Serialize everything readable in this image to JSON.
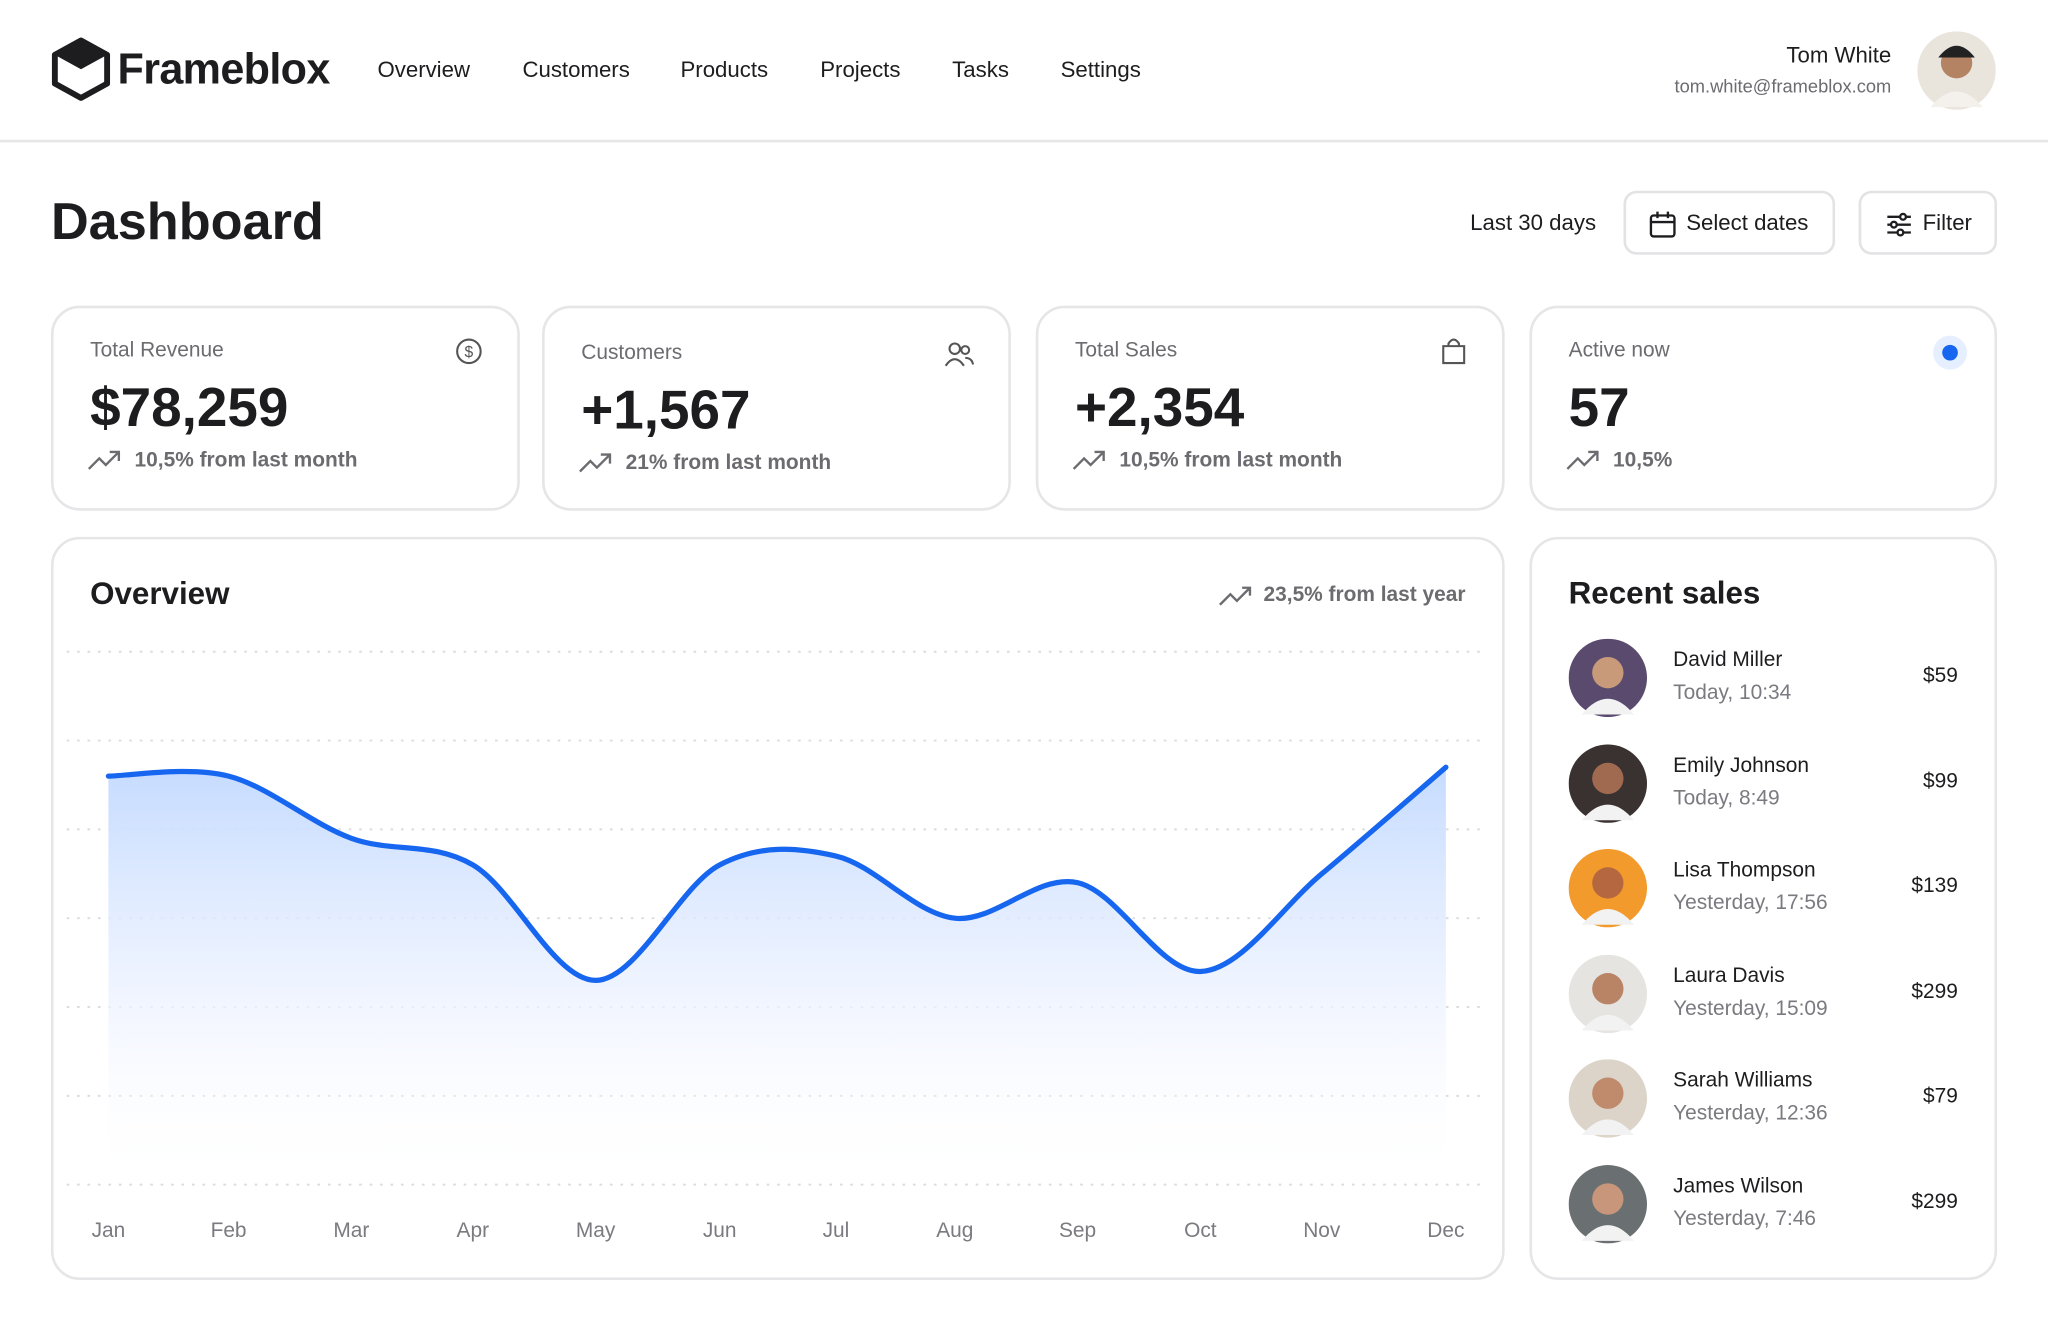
{
  "header": {
    "brand": "Frameblox",
    "nav": [
      "Overview",
      "Customers",
      "Products",
      "Projects",
      "Tasks",
      "Settings"
    ],
    "user": {
      "name": "Tom White",
      "email": "tom.white@frameblox.com"
    }
  },
  "page": {
    "title": "Dashboard",
    "range": "Last 30 days",
    "select_dates": "Select dates",
    "filter": "Filter"
  },
  "stats": [
    {
      "label": "Total Revenue",
      "value": "$78,259",
      "change": "10,5% from last month"
    },
    {
      "label": "Customers",
      "value": "+1,567",
      "change": "21% from last month"
    },
    {
      "label": "Total Sales",
      "value": "+2,354",
      "change": "10,5% from last month"
    },
    {
      "label": "Active now",
      "value": "57",
      "change": "10,5%"
    }
  ],
  "chart_data": {
    "type": "line",
    "title": "Overview",
    "annotation": "23,5% from last year",
    "categories": [
      "Jan",
      "Feb",
      "Mar",
      "Apr",
      "May",
      "Jun",
      "Jul",
      "Aug",
      "Sep",
      "Oct",
      "Nov",
      "Dec"
    ],
    "values": [
      4.6,
      4.6,
      3.9,
      3.6,
      2.3,
      3.6,
      3.7,
      3.0,
      3.4,
      2.4,
      3.5,
      4.7
    ],
    "color": "#1766f0",
    "ylim": [
      0,
      6
    ],
    "yticks": [
      0,
      1,
      2,
      3,
      4,
      5,
      6
    ],
    "grid": true
  },
  "recent_sales": {
    "title": "Recent sales",
    "items": [
      {
        "name": "David Miller",
        "time": "Today, 10:34",
        "amount": "$59"
      },
      {
        "name": "Emily Johnson",
        "time": "Today, 8:49",
        "amount": "$99"
      },
      {
        "name": "Lisa Thompson",
        "time": "Yesterday, 17:56",
        "amount": "$139"
      },
      {
        "name": "Laura Davis",
        "time": "Yesterday, 15:09",
        "amount": "$299"
      },
      {
        "name": "Sarah Williams",
        "time": "Yesterday, 12:36",
        "amount": "$79"
      },
      {
        "name": "James Wilson",
        "time": "Yesterday, 7:46",
        "amount": "$299"
      }
    ]
  }
}
